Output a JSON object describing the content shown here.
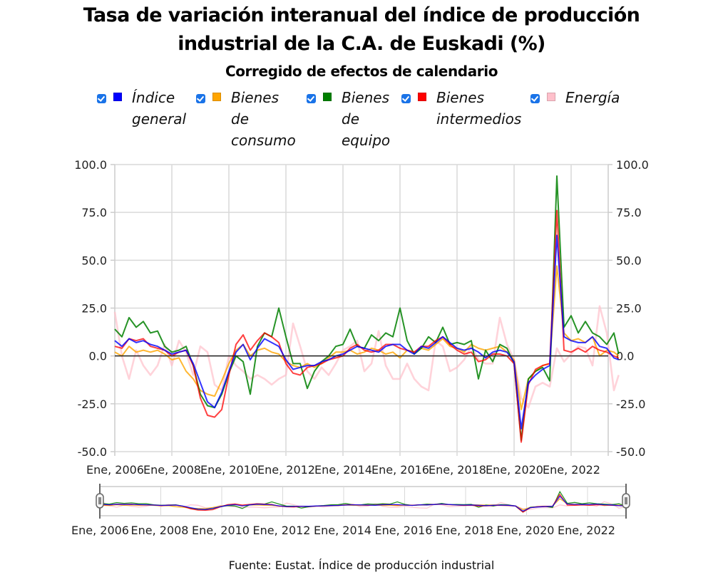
{
  "header": {
    "title_line1": "Tasa de variación interanual del índice de producción",
    "title_line2": "industrial de la C.A. de Euskadi (%)",
    "subtitle": "Corregido de efectos de calendario"
  },
  "legend": [
    {
      "label_lines": [
        "Índice",
        "general"
      ],
      "color": "#0000ff",
      "checked": true
    },
    {
      "label_lines": [
        "Bienes",
        "de",
        "consumo"
      ],
      "color": "#ffa500",
      "checked": true
    },
    {
      "label_lines": [
        "Bienes",
        "de",
        "equipo"
      ],
      "color": "#008000",
      "checked": true
    },
    {
      "label_lines": [
        "Bienes",
        "intermedios"
      ],
      "color": "#ff0000",
      "checked": true
    },
    {
      "label_lines": [
        "Energía"
      ],
      "color": "#ffc0cb",
      "checked": true
    }
  ],
  "footer": {
    "source": "Fuente: Eustat. Índice de producción industrial"
  },
  "chart_data": {
    "type": "line",
    "title": "Tasa de variación interanual del índice de producción industrial de la C.A. de Euskadi (%)",
    "subtitle": "Corregido de efectos de calendario",
    "xlabel": "",
    "ylabel": "",
    "ylim": [
      -50,
      100
    ],
    "yticks": [
      "100.0",
      "75.0",
      "50.0",
      "25.0",
      "0.0",
      "-25.0",
      "-50.0"
    ],
    "ytick_values": [
      100,
      75,
      50,
      25,
      0,
      -25,
      -50
    ],
    "xticks": [
      "Ene, 2006",
      "Ene, 2008",
      "Ene, 2010",
      "Ene, 2012",
      "Ene, 2014",
      "Ene, 2016",
      "Ene, 2018",
      "Ene, 2020",
      "Ene, 2022"
    ],
    "navigator_xticks": [
      "Ene, 2006",
      "Ene, 2008",
      "Ene, 2010",
      "Ene, 2012",
      "Ene, 2014",
      "Ene, 2016",
      "Ene, 2018",
      "Ene, 2020",
      "Ene, 2022"
    ],
    "grid": true,
    "legend_position": "top",
    "x_start": "2006-01",
    "x_step_months": 3,
    "x": [
      "2006-01",
      "2006-04",
      "2006-07",
      "2006-10",
      "2007-01",
      "2007-04",
      "2007-07",
      "2007-10",
      "2008-01",
      "2008-04",
      "2008-07",
      "2008-10",
      "2009-01",
      "2009-04",
      "2009-07",
      "2009-10",
      "2010-01",
      "2010-04",
      "2010-07",
      "2010-10",
      "2011-01",
      "2011-04",
      "2011-07",
      "2011-10",
      "2012-01",
      "2012-04",
      "2012-07",
      "2012-10",
      "2013-01",
      "2013-04",
      "2013-07",
      "2013-10",
      "2014-01",
      "2014-04",
      "2014-07",
      "2014-10",
      "2015-01",
      "2015-04",
      "2015-07",
      "2015-10",
      "2016-01",
      "2016-04",
      "2016-07",
      "2016-10",
      "2017-01",
      "2017-04",
      "2017-07",
      "2017-10",
      "2018-01",
      "2018-04",
      "2018-07",
      "2018-10",
      "2019-01",
      "2019-04",
      "2019-07",
      "2019-10",
      "2020-01",
      "2020-04",
      "2020-07",
      "2020-10",
      "2021-01",
      "2021-04",
      "2021-07",
      "2021-10",
      "2022-01",
      "2022-04",
      "2022-07",
      "2022-10",
      "2023-01",
      "2023-04",
      "2023-07",
      "2023-09"
    ],
    "series": [
      {
        "name": "Índice general",
        "color": "#0000ff",
        "values": [
          8,
          5,
          9,
          7,
          8,
          6,
          5,
          3,
          1,
          2,
          3,
          -4,
          -14,
          -24,
          -27,
          -19,
          -8,
          2,
          6,
          -2,
          4,
          9,
          7,
          5,
          -2,
          -7,
          -6,
          -5,
          -5,
          -3,
          -2,
          0,
          1,
          3,
          5,
          4,
          3,
          2,
          5,
          6,
          6,
          3,
          1,
          5,
          4,
          7,
          10,
          7,
          4,
          3,
          4,
          2,
          -1,
          2,
          3,
          2,
          -3,
          -38,
          -14,
          -10,
          -7,
          -5,
          63,
          10,
          8,
          7,
          7,
          10,
          5,
          4,
          -1,
          -2
        ]
      },
      {
        "name": "Bienes de consumo",
        "color": "#ffa500",
        "values": [
          2,
          0,
          5,
          2,
          3,
          2,
          3,
          1,
          -2,
          -1,
          -8,
          -12,
          -18,
          -20,
          -21,
          -13,
          -4,
          3,
          6,
          0,
          3,
          4,
          2,
          1,
          -3,
          -5,
          -6,
          -4,
          -6,
          -4,
          -1,
          2,
          2,
          3,
          1,
          2,
          4,
          3,
          1,
          2,
          -1,
          3,
          2,
          4,
          3,
          6,
          9,
          5,
          4,
          2,
          6,
          4,
          3,
          4,
          5,
          2,
          -2,
          -28,
          -12,
          -8,
          -5,
          -4,
          47,
          12,
          8,
          9,
          7,
          10,
          0,
          3,
          2,
          0
        ]
      },
      {
        "name": "Bienes de equipo",
        "color": "#008000",
        "values": [
          14,
          10,
          20,
          15,
          18,
          12,
          13,
          5,
          2,
          3,
          5,
          -5,
          -20,
          -26,
          -27,
          -20,
          -9,
          0,
          -3,
          -20,
          5,
          12,
          10,
          25,
          10,
          -4,
          -4,
          -17,
          -8,
          -3,
          0,
          5,
          6,
          14,
          5,
          4,
          11,
          8,
          12,
          10,
          25,
          8,
          1,
          4,
          10,
          7,
          15,
          6,
          7,
          6,
          8,
          -12,
          3,
          -3,
          6,
          4,
          -4,
          -44,
          -12,
          -8,
          -6,
          -13,
          94,
          15,
          21,
          12,
          18,
          12,
          10,
          6,
          12,
          1
        ]
      },
      {
        "name": "Bienes intermedios",
        "color": "#ff0000",
        "values": [
          5,
          4,
          9,
          8,
          9,
          5,
          4,
          3,
          0,
          2,
          3,
          -5,
          -22,
          -31,
          -32,
          -28,
          -10,
          6,
          11,
          3,
          8,
          12,
          10,
          7,
          -4,
          -9,
          -10,
          -6,
          -5,
          -4,
          -2,
          -1,
          0,
          4,
          6,
          3,
          2,
          3,
          6,
          6,
          4,
          3,
          2,
          5,
          5,
          8,
          10,
          6,
          3,
          1,
          2,
          -3,
          -2,
          1,
          1,
          0,
          -4,
          -45,
          -15,
          -7,
          -5,
          -4,
          76,
          3,
          2,
          4,
          2,
          5,
          3,
          2,
          0,
          -1
        ]
      },
      {
        "name": "Energía",
        "color": "#ffc0cb",
        "values": [
          23,
          0,
          -12,
          3,
          -5,
          -10,
          -5,
          6,
          -5,
          8,
          2,
          -10,
          5,
          2,
          -15,
          -18,
          0,
          -5,
          -8,
          -12,
          -10,
          -12,
          -15,
          -12,
          -10,
          17,
          5,
          -8,
          -12,
          -6,
          -10,
          -4,
          3,
          5,
          8,
          -8,
          -4,
          13,
          -5,
          -12,
          -12,
          -4,
          -12,
          -16,
          -18,
          8,
          5,
          -8,
          -6,
          -2,
          5,
          -2,
          -4,
          -4,
          20,
          6,
          -2,
          -22,
          -27,
          -16,
          -14,
          -16,
          4,
          -3,
          1,
          5,
          4,
          -5,
          26,
          12,
          -18,
          -10
        ]
      }
    ]
  }
}
